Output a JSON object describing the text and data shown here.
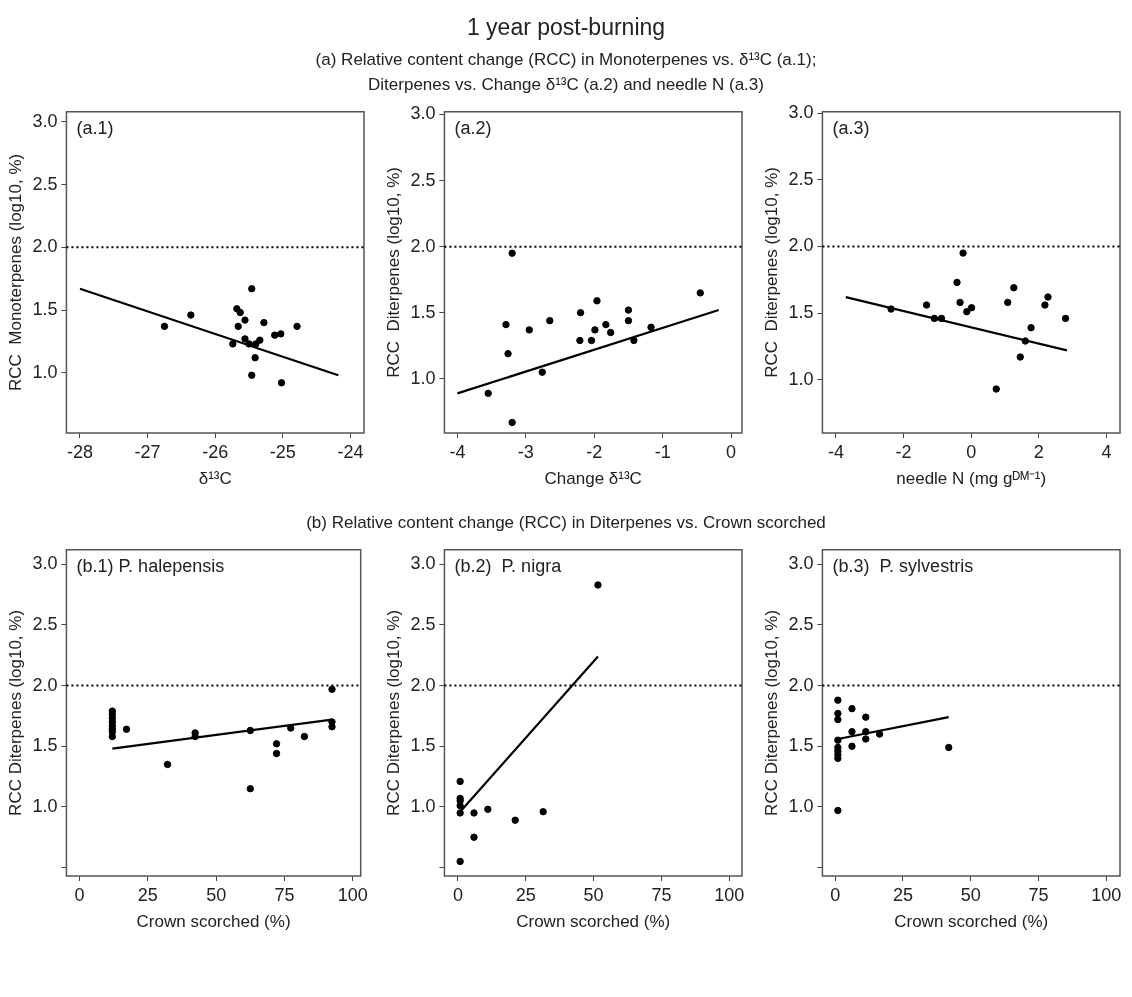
{
  "chart_data": [
    {
      "type": "other",
      "title": "1 year post-burning",
      "subtitle": "(a) Relative content change (RCC) in Monoterpenes vs. δ¹³C (a.1); Diterpenes vs. Change δ¹³C (a.2) and needle N (a.3)"
    },
    {
      "type": "scatter",
      "xlabel": "δ¹³C",
      "ylabel": "RCC  Monoterpenes (log10, %)",
      "annotations": [
        "(a.1)"
      ],
      "xlim": [
        -28.2,
        -23.8
      ],
      "xticks": [
        -28,
        -27,
        -26,
        -25,
        -24
      ],
      "ylim": [
        0.52,
        3.08
      ],
      "yticks": [
        {
          "value": 1,
          "label": "1.0"
        },
        {
          "value": 1.5,
          "label": "1.5"
        },
        {
          "value": 2,
          "label": "2.0"
        },
        {
          "value": 2.5,
          "label": "2.5"
        },
        {
          "value": 3,
          "label": "3.0"
        }
      ],
      "grid": false,
      "marker": "circle",
      "ref_lines": [
        {
          "axis": "y",
          "value": 2,
          "line_style": "dotted",
          "color": "#000000"
        }
      ],
      "series": [
        {
          "type": "scatter",
          "color": "#000000",
          "x": [
            -26.75,
            -26.36,
            -25.74,
            -25.68,
            -25.63,
            -25.66,
            -25.56,
            -25.56,
            -25.5,
            -25.46,
            -25.46,
            -25.41,
            -25.4,
            -25.34,
            -25.28,
            -25.12,
            -25.03,
            -25.02,
            -24.79
          ],
          "values": [
            1.37,
            1.46,
            1.23,
            1.51,
            1.48,
            1.37,
            1.42,
            1.27,
            1.23,
            1.67,
            0.98,
            1.12,
            1.23,
            1.26,
            1.4,
            1.3,
            1.31,
            0.92,
            1.37
          ]
        },
        {
          "type": "line",
          "marker": "none",
          "color": "#000000",
          "x": [
            -28,
            -24.18
          ],
          "values": [
            1.67,
            0.98
          ]
        }
      ]
    },
    {
      "type": "scatter",
      "xlabel": "Change δ¹³C",
      "ylabel": "RCC  Diterpenes (log10, %)",
      "annotations": [
        "(a.2)"
      ],
      "xlim": [
        -4.19,
        0.16
      ],
      "xticks": [
        -4,
        -3,
        -2,
        -1,
        0
      ],
      "ylim": [
        0.59,
        3.02
      ],
      "yticks": [
        {
          "value": 1,
          "label": "1.0"
        },
        {
          "value": 1.5,
          "label": "1.5"
        },
        {
          "value": 2,
          "label": "2.0"
        },
        {
          "value": 2.5,
          "label": "2.5"
        },
        {
          "value": 3,
          "label": "3.0"
        }
      ],
      "grid": false,
      "marker": "circle",
      "ref_lines": [
        {
          "axis": "y",
          "value": 2,
          "line_style": "dotted",
          "color": "#000000"
        }
      ],
      "series": [
        {
          "type": "scatter",
          "color": "#000000",
          "x": [
            -3.55,
            -3.2,
            -3.29,
            -3.26,
            -3.2,
            -2.95,
            -2.76,
            -2.65,
            -2.2,
            -2.21,
            -2.04,
            -1.99,
            -1.96,
            -1.83,
            -1.76,
            -1.5,
            -1.5,
            -1.42,
            -1.17,
            -0.45
          ],
          "values": [
            0.89,
            1.95,
            1.41,
            1.19,
            0.67,
            1.37,
            1.05,
            1.44,
            1.5,
            1.29,
            1.29,
            1.37,
            1.59,
            1.41,
            1.35,
            1.52,
            1.44,
            1.29,
            1.39,
            1.65
          ]
        },
        {
          "type": "line",
          "marker": "none",
          "color": "#000000",
          "x": [
            -4,
            -0.18
          ],
          "values": [
            0.89,
            1.52
          ]
        }
      ]
    },
    {
      "type": "scatter",
      "xlabel": "needle N (mg gᴰᴹ⁻¹)",
      "ylabel": "RCC  Diterpenes (log10, %)",
      "annotations": [
        "(a.3)"
      ],
      "xlim": [
        -4.4,
        4.4
      ],
      "xticks": [
        -4,
        -2,
        0,
        2,
        4
      ],
      "ylim": [
        0.6,
        3.01
      ],
      "yticks": [
        {
          "value": 1,
          "label": "1.0"
        },
        {
          "value": 1.5,
          "label": "1.5"
        },
        {
          "value": 2,
          "label": "2.0"
        },
        {
          "value": 2.5,
          "label": "2.5"
        },
        {
          "value": 3,
          "label": "3.0"
        }
      ],
      "grid": false,
      "marker": "circle",
      "ref_lines": [
        {
          "axis": "y",
          "value": 2,
          "line_style": "dotted",
          "color": "#000000"
        }
      ],
      "series": [
        {
          "type": "scatter",
          "color": "#000000",
          "x": [
            -2.37,
            -1.32,
            -1.09,
            -0.88,
            -0.42,
            -0.33,
            -0.24,
            -0.13,
            0.01,
            0.74,
            1.08,
            1.26,
            1.45,
            1.6,
            1.77,
            2.18,
            2.27,
            2.79
          ],
          "values": [
            1.53,
            1.56,
            1.46,
            1.46,
            1.73,
            1.58,
            1.95,
            1.51,
            1.54,
            0.93,
            1.58,
            1.69,
            1.17,
            1.29,
            1.39,
            1.56,
            1.62,
            1.46
          ]
        },
        {
          "type": "line",
          "marker": "none",
          "color": "#000000",
          "x": [
            -3.71,
            2.83
          ],
          "values": [
            1.62,
            1.22
          ]
        }
      ]
    },
    {
      "type": "other",
      "subtitle": "(b) Relative content change (RCC) in Diterpenes vs. Crown scorched"
    },
    {
      "type": "scatter",
      "xlabel": "Crown scorched (%)",
      "ylabel": "RCC Diterpenes (log10, %)",
      "annotations": [
        "(b.1) P. halepensis"
      ],
      "xlim": [
        -4.8,
        102.9
      ],
      "xticks": [
        0,
        25,
        50,
        75,
        100
      ],
      "ylim": [
        0.43,
        3.12
      ],
      "yticks": [
        {
          "value": 0.5,
          "label": null
        },
        {
          "value": 1,
          "label": "1.0"
        },
        {
          "value": 1.5,
          "label": "1.5"
        },
        {
          "value": 2,
          "label": "2.0"
        },
        {
          "value": 2.5,
          "label": "2.5"
        },
        {
          "value": 3,
          "label": "3.0"
        }
      ],
      "grid": false,
      "marker": "circle",
      "ref_lines": [
        {
          "axis": "y",
          "value": 2,
          "line_style": "dotted",
          "color": "#000000"
        }
      ],
      "series": [
        {
          "type": "scatter",
          "color": "#000000",
          "x": [
            12,
            12,
            12,
            12,
            12,
            12,
            12,
            12,
            17.2,
            32.2,
            42.3,
            42.3,
            62.5,
            62.5,
            72.1,
            72.1,
            77.3,
            82.3,
            92.4,
            92.4,
            92.4
          ],
          "values": [
            1.79,
            1.76,
            1.73,
            1.7,
            1.67,
            1.64,
            1.62,
            1.58,
            1.64,
            1.35,
            1.61,
            1.58,
            1.15,
            1.63,
            1.52,
            1.44,
            1.65,
            1.58,
            1.97,
            1.7,
            1.66
          ]
        },
        {
          "type": "line",
          "marker": "none",
          "color": "#000000",
          "x": [
            12,
            92.4
          ],
          "values": [
            1.48,
            1.72
          ]
        }
      ]
    },
    {
      "type": "scatter",
      "xlabel": "Crown scorched (%)",
      "ylabel": "RCC Diterpenes (log10, %)",
      "annotations": [
        "(b.2)  P. nigra"
      ],
      "xlim": [
        -5,
        104.7
      ],
      "xticks": [
        0,
        25,
        50,
        75,
        100
      ],
      "ylim": [
        0.43,
        3.12
      ],
      "yticks": [
        {
          "value": 0.5,
          "label": null
        },
        {
          "value": 1,
          "label": "1.0"
        },
        {
          "value": 1.5,
          "label": "1.5"
        },
        {
          "value": 2,
          "label": "2.0"
        },
        {
          "value": 2.5,
          "label": "2.5"
        },
        {
          "value": 3,
          "label": "3.0"
        }
      ],
      "grid": false,
      "marker": "circle",
      "ref_lines": [
        {
          "axis": "y",
          "value": 2,
          "line_style": "dotted",
          "color": "#000000"
        }
      ],
      "series": [
        {
          "type": "scatter",
          "color": "#000000",
          "x": [
            0.8,
            0.8,
            0.8,
            0.8,
            0.8,
            0.8,
            5.9,
            5.9,
            11,
            21.1,
            31.4,
            51.6
          ],
          "values": [
            0.55,
            0.95,
            1.01,
            1.05,
            1.07,
            1.21,
            0.95,
            0.75,
            0.98,
            0.89,
            0.96,
            2.83
          ]
        },
        {
          "type": "line",
          "marker": "none",
          "color": "#000000",
          "x": [
            0.8,
            51.6
          ],
          "values": [
            0.96,
            2.24
          ]
        }
      ]
    },
    {
      "type": "scatter",
      "xlabel": "Crown scorched (%)",
      "ylabel": "RCC Diterpenes (log10, %)",
      "annotations": [
        "(b.3)  P. sylvestris"
      ],
      "xlim": [
        -4.7,
        105.1
      ],
      "xticks": [
        0,
        25,
        50,
        75,
        100
      ],
      "ylim": [
        0.43,
        3.12
      ],
      "yticks": [
        {
          "value": 0.5,
          "label": null
        },
        {
          "value": 1,
          "label": "1.0"
        },
        {
          "value": 1.5,
          "label": "1.5"
        },
        {
          "value": 2,
          "label": "2.0"
        },
        {
          "value": 2.5,
          "label": "2.5"
        },
        {
          "value": 3,
          "label": "3.0"
        }
      ],
      "grid": false,
      "marker": "circle",
      "ref_lines": [
        {
          "axis": "y",
          "value": 2,
          "line_style": "dotted",
          "color": "#000000"
        }
      ],
      "series": [
        {
          "type": "scatter",
          "color": "#000000",
          "x": [
            1,
            1,
            1,
            1,
            1,
            1,
            1,
            1,
            1,
            6.2,
            6.2,
            6.2,
            11.3,
            11.3,
            11.3,
            16.4,
            41.9
          ],
          "values": [
            1.88,
            1.77,
            1.72,
            1.55,
            1.49,
            1.46,
            1.43,
            1.4,
            0.97,
            1.81,
            1.62,
            1.5,
            1.74,
            1.62,
            1.56,
            1.6,
            1.49
          ]
        },
        {
          "type": "line",
          "marker": "none",
          "color": "#000000",
          "x": [
            1,
            41.9
          ],
          "values": [
            1.56,
            1.74
          ]
        }
      ]
    }
  ]
}
